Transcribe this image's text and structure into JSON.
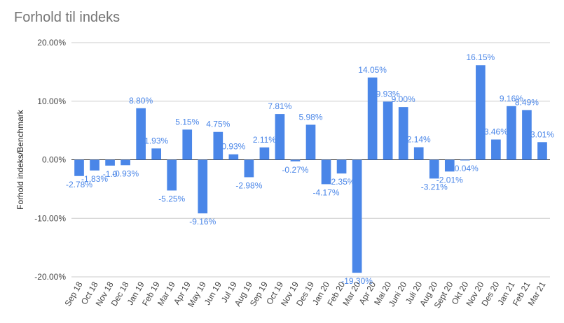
{
  "chart_data": {
    "type": "bar",
    "title": "Forhold til indeks",
    "ylabel": "Forhold indeks/Benchmark",
    "xlabel": "",
    "ylim": [
      -20,
      20
    ],
    "yticks": [
      20,
      10,
      0,
      -10,
      -20
    ],
    "ytick_labels": [
      "20.00%",
      "10.00%",
      "0.00%",
      "-10.00%",
      "-20.00%"
    ],
    "grid": true,
    "color": "#4a86e8",
    "categories": [
      "Sep 18",
      "Oct 18",
      "Nov 18",
      "Dec 18",
      "Jan 19",
      "Feb 19",
      "Mar 19",
      "Apr 19",
      "May 19",
      "Jun 19",
      "Jul 19",
      "Aug 19",
      "Sep 19",
      "Oct 19",
      "Nov 19",
      "Des 19",
      "Jan 20",
      "Feb 20",
      "Mar 20",
      "Apr 20",
      "Mai 20",
      "Juni 20",
      "Juli 20",
      "Aug 20",
      "Sept 20",
      "Okt 20",
      "Nov 20",
      "Des 20",
      "Jan 21",
      "Feb 21",
      "Mar 21"
    ],
    "values": [
      -2.78,
      -1.83,
      -1.0,
      -0.93,
      8.8,
      1.93,
      -5.25,
      5.15,
      -9.16,
      4.75,
      0.93,
      -2.98,
      2.11,
      7.81,
      -0.27,
      5.98,
      -4.17,
      -2.35,
      -19.3,
      14.05,
      9.93,
      9.0,
      2.14,
      -3.21,
      -2.01,
      -0.04,
      16.15,
      3.46,
      9.16,
      8.49,
      3.01
    ],
    "labels": [
      "-2.78%",
      "-1.83%",
      "-1.0",
      "-0.93%",
      "8.80%",
      "1.93%",
      "-5.25%",
      "5.15%",
      "-9.16%",
      "4.75%",
      "0.93%",
      "-2.98%",
      "2.11%",
      "7.81%",
      "-0.27%",
      "5.98%",
      "-4.17%",
      "-2.35%",
      "-19.30%",
      "14.05%",
      "9.93%",
      "9.00%",
      "2.14%",
      "-3.21%",
      "-2.01%",
      "-0.04%",
      "16.15%",
      "3.46%",
      "9.16%",
      "8.49%",
      "3.01%"
    ]
  }
}
